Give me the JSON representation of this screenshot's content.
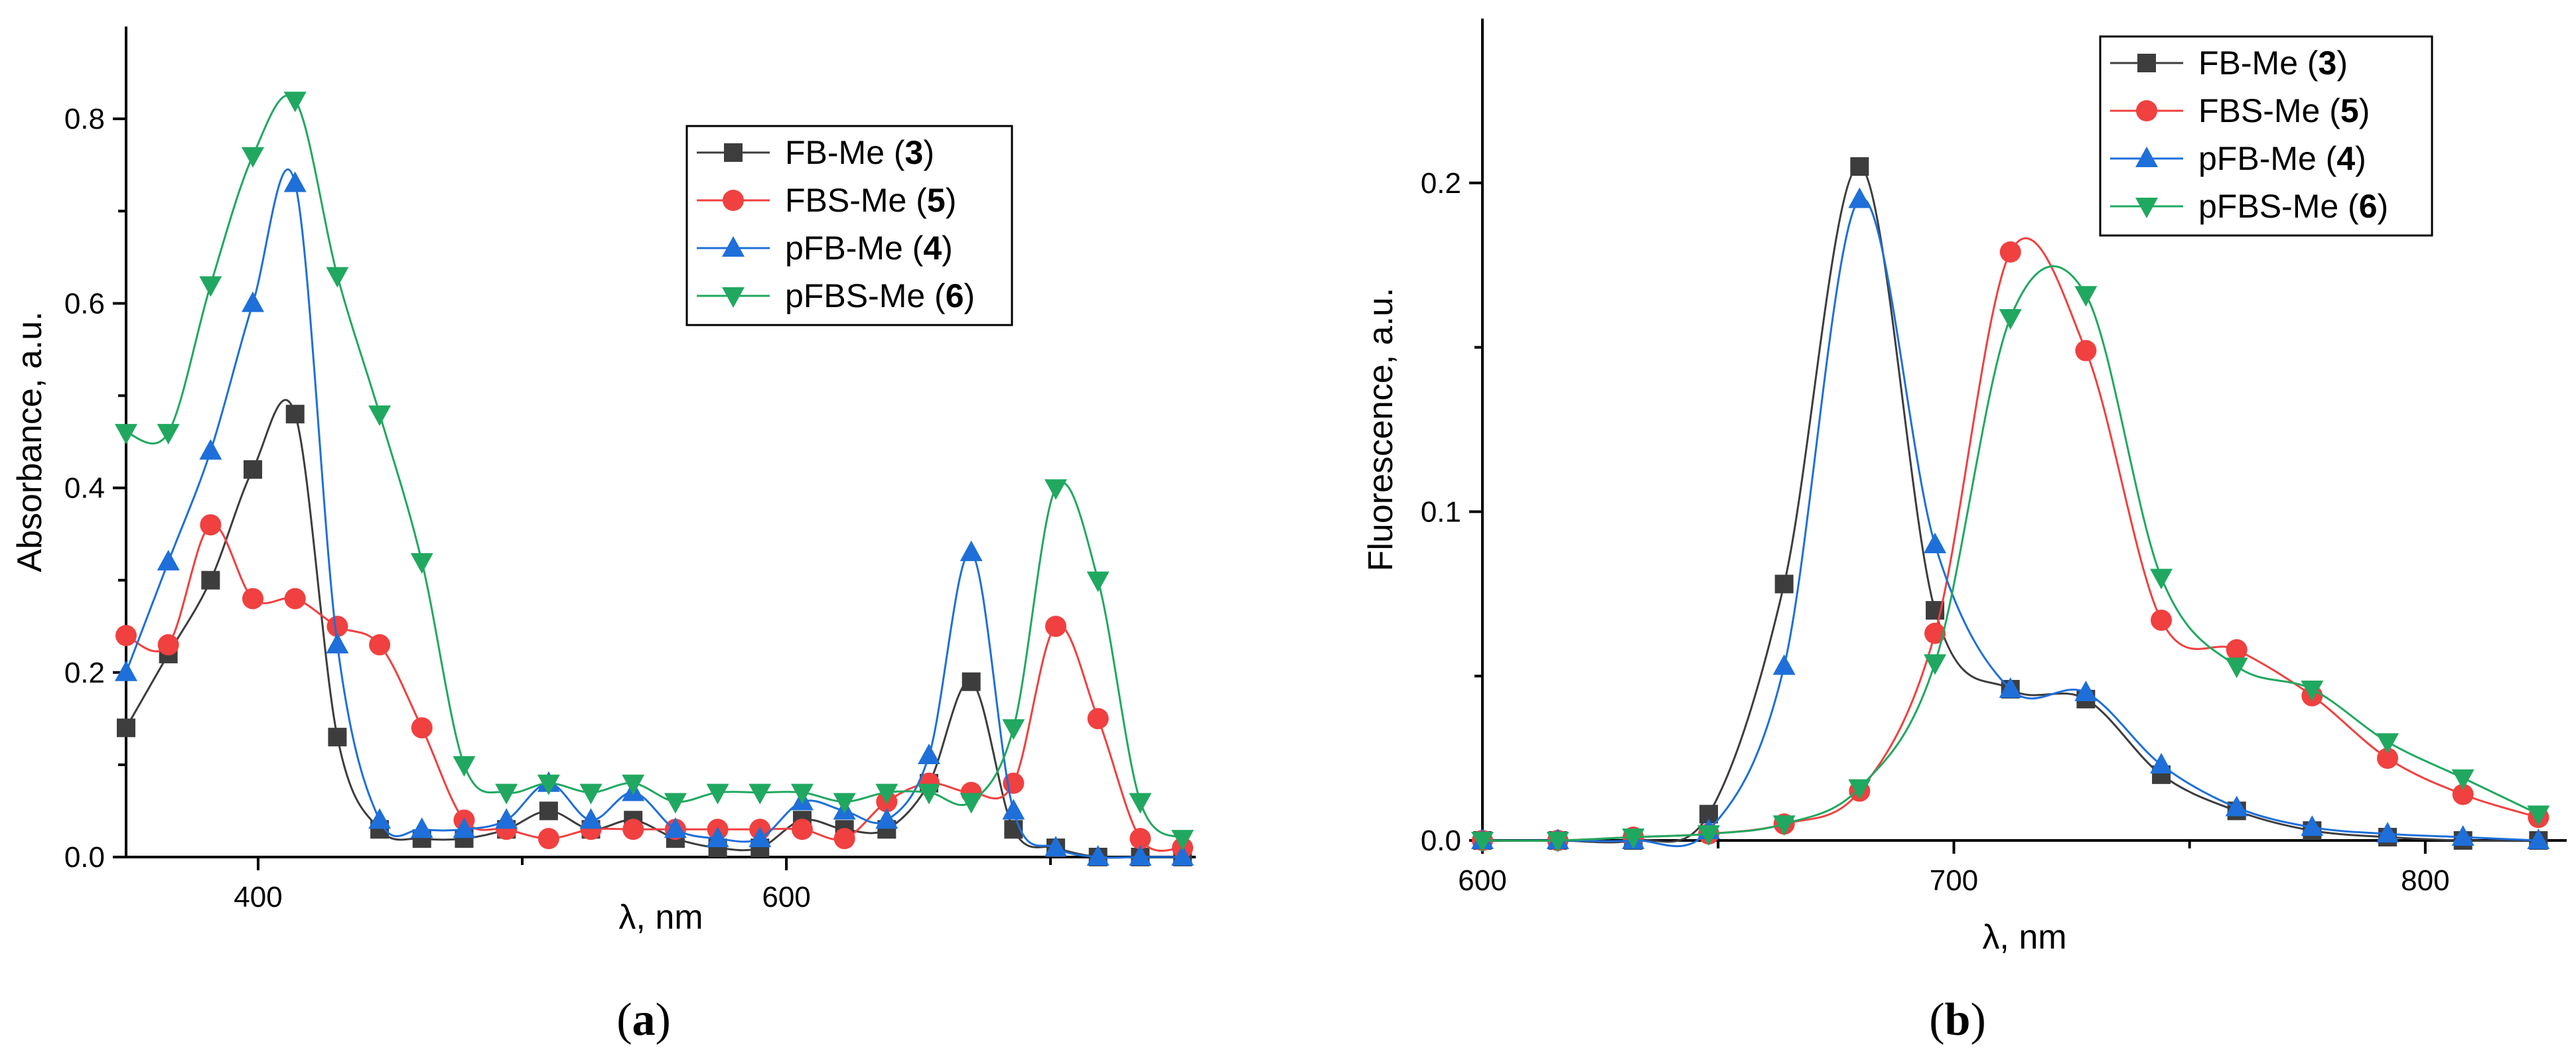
{
  "figure": {
    "panels": [
      {
        "label": "a",
        "label_prefix": "(",
        "label_suffix": ")"
      },
      {
        "label": "b",
        "label_prefix": "(",
        "label_suffix": ")"
      }
    ]
  },
  "chart_data": [
    {
      "type": "line",
      "title": "",
      "xlabel": "λ, nm",
      "ylabel": "Absorbance, a.u.",
      "xlim": [
        350,
        755
      ],
      "ylim": [
        0,
        0.9
      ],
      "xticks": [
        400,
        600
      ],
      "xticks_minor": [
        500,
        700
      ],
      "yticks": [
        0.0,
        0.2,
        0.4,
        0.6,
        0.8
      ],
      "ytick_labels": [
        "0.0",
        "0.2",
        "0.4",
        "0.6",
        "0.8"
      ],
      "legend_position": "top-right",
      "series": [
        {
          "name": "FB-Me",
          "compound": "3",
          "color": "#3d3d3d",
          "marker": "square",
          "x": [
            350,
            366,
            382,
            398,
            414,
            430,
            446,
            462,
            478,
            494,
            510,
            526,
            542,
            558,
            574,
            590,
            606,
            622,
            638,
            654,
            670,
            686,
            702,
            718,
            734,
            750
          ],
          "y": [
            0.14,
            0.22,
            0.3,
            0.42,
            0.48,
            0.13,
            0.03,
            0.02,
            0.02,
            0.03,
            0.05,
            0.03,
            0.04,
            0.02,
            0.01,
            0.01,
            0.04,
            0.03,
            0.03,
            0.08,
            0.19,
            0.03,
            0.01,
            0.0,
            0.0,
            0.0
          ]
        },
        {
          "name": "FBS-Me",
          "compound": "5",
          "color": "#f04040",
          "marker": "circle",
          "x": [
            350,
            366,
            382,
            398,
            414,
            430,
            446,
            462,
            478,
            494,
            510,
            526,
            542,
            558,
            574,
            590,
            606,
            622,
            638,
            654,
            670,
            686,
            702,
            718,
            734,
            750
          ],
          "y": [
            0.24,
            0.23,
            0.36,
            0.28,
            0.28,
            0.25,
            0.23,
            0.14,
            0.04,
            0.03,
            0.02,
            0.03,
            0.03,
            0.03,
            0.03,
            0.03,
            0.03,
            0.02,
            0.06,
            0.08,
            0.07,
            0.08,
            0.25,
            0.15,
            0.02,
            0.01
          ]
        },
        {
          "name": "pFB-Me",
          "compound": "4",
          "color": "#1e6fd9",
          "marker": "triangle-up",
          "x": [
            350,
            366,
            382,
            398,
            414,
            430,
            446,
            462,
            478,
            494,
            510,
            526,
            542,
            558,
            574,
            590,
            606,
            622,
            638,
            654,
            670,
            686,
            702,
            718,
            734,
            750
          ],
          "y": [
            0.2,
            0.32,
            0.44,
            0.6,
            0.73,
            0.23,
            0.04,
            0.03,
            0.03,
            0.04,
            0.08,
            0.04,
            0.07,
            0.03,
            0.02,
            0.02,
            0.06,
            0.05,
            0.04,
            0.11,
            0.33,
            0.05,
            0.01,
            0.0,
            0.0,
            0.0
          ]
        },
        {
          "name": "pFBS-Me",
          "compound": "6",
          "color": "#20a860",
          "marker": "triangle-down",
          "x": [
            350,
            366,
            382,
            398,
            414,
            430,
            446,
            462,
            478,
            494,
            510,
            526,
            542,
            558,
            574,
            590,
            606,
            622,
            638,
            654,
            670,
            686,
            702,
            718,
            734,
            750
          ],
          "y": [
            0.46,
            0.46,
            0.62,
            0.76,
            0.82,
            0.63,
            0.48,
            0.32,
            0.1,
            0.07,
            0.08,
            0.07,
            0.08,
            0.06,
            0.07,
            0.07,
            0.07,
            0.06,
            0.07,
            0.07,
            0.06,
            0.14,
            0.4,
            0.3,
            0.06,
            0.02
          ]
        }
      ]
    },
    {
      "type": "line",
      "title": "",
      "xlabel": "λ, nm",
      "ylabel": "Fluorescence, a.u.",
      "xlim": [
        600,
        830
      ],
      "ylim": [
        0,
        0.25
      ],
      "xticks": [
        600,
        700,
        800
      ],
      "xticks_minor": [
        650,
        750
      ],
      "yticks": [
        0.0,
        0.1,
        0.2
      ],
      "ytick_labels": [
        "0.0",
        "0.1",
        "0.2"
      ],
      "legend_position": "top-right",
      "series": [
        {
          "name": "FB-Me",
          "compound": "3",
          "color": "#3d3d3d",
          "marker": "square",
          "x": [
            600,
            616,
            632,
            648,
            664,
            680,
            696,
            712,
            728,
            744,
            760,
            776,
            792,
            808,
            824
          ],
          "y": [
            0.0,
            0.0,
            0.0,
            0.008,
            0.078,
            0.205,
            0.07,
            0.046,
            0.043,
            0.02,
            0.009,
            0.003,
            0.001,
            0.0,
            0.0
          ]
        },
        {
          "name": "FBS-Me",
          "compound": "5",
          "color": "#f04040",
          "marker": "circle",
          "x": [
            600,
            616,
            632,
            648,
            664,
            680,
            696,
            712,
            728,
            744,
            760,
            776,
            792,
            808,
            824
          ],
          "y": [
            0.0,
            0.0,
            0.001,
            0.002,
            0.005,
            0.015,
            0.063,
            0.179,
            0.149,
            0.067,
            0.058,
            0.044,
            0.025,
            0.014,
            0.007
          ]
        },
        {
          "name": "pFB-Me",
          "compound": "4",
          "color": "#1e6fd9",
          "marker": "triangle-up",
          "x": [
            600,
            616,
            632,
            648,
            664,
            680,
            696,
            712,
            728,
            744,
            760,
            776,
            792,
            808,
            824
          ],
          "y": [
            0.0,
            0.0,
            0.0,
            0.003,
            0.053,
            0.195,
            0.09,
            0.046,
            0.045,
            0.023,
            0.01,
            0.004,
            0.002,
            0.001,
            0.0
          ]
        },
        {
          "name": "pFBS-Me",
          "compound": "6",
          "color": "#20a860",
          "marker": "triangle-down",
          "x": [
            600,
            616,
            632,
            648,
            664,
            680,
            696,
            712,
            728,
            744,
            760,
            776,
            792,
            808,
            824
          ],
          "y": [
            0.0,
            0.0,
            0.001,
            0.002,
            0.005,
            0.016,
            0.054,
            0.159,
            0.166,
            0.08,
            0.053,
            0.046,
            0.03,
            0.019,
            0.008
          ]
        }
      ]
    }
  ]
}
